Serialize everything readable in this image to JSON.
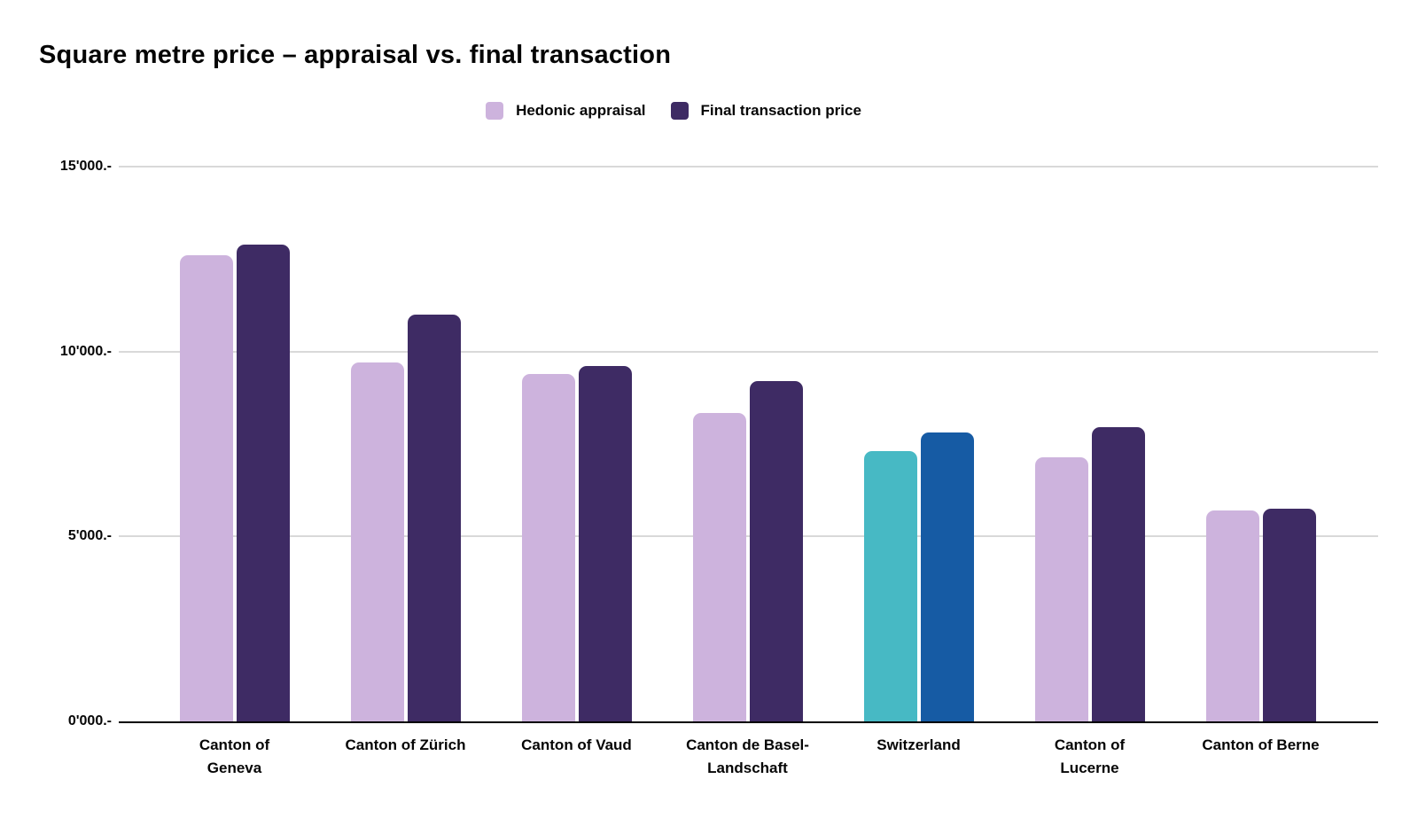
{
  "header": {
    "title": "Square metre price – appraisal vs. final transaction"
  },
  "legend": [
    {
      "label": "Hedonic appraisal",
      "color": "#cdb3dd"
    },
    {
      "label": "Final transaction price",
      "color": "#3e2b64"
    }
  ],
  "colors": {
    "hedonic": "#cdb3dd",
    "final": "#3e2b64",
    "highlight_hedonic": "#47b9c4",
    "highlight_final": "#165ba4",
    "gridline": "#d9d9d9",
    "axis": "#000000"
  },
  "chart_data": {
    "type": "bar",
    "title": "Square metre price – appraisal vs. final transaction",
    "categories": [
      {
        "label": "Canton of Geneva",
        "lines": [
          "Canton of",
          "Geneva"
        ]
      },
      {
        "label": "Canton of Zürich",
        "lines": [
          "Canton of Zürich"
        ]
      },
      {
        "label": "Canton of Vaud",
        "lines": [
          "Canton of Vaud"
        ]
      },
      {
        "label": "Canton de Basel-Landschaft",
        "lines": [
          "Canton de Basel-",
          "Landschaft"
        ]
      },
      {
        "label": "Switzerland",
        "lines": [
          "Switzerland"
        ]
      },
      {
        "label": "Canton of Lucerne",
        "lines": [
          "Canton of",
          "Lucerne"
        ]
      },
      {
        "label": "Canton of Berne",
        "lines": [
          "Canton of Berne"
        ]
      }
    ],
    "series": [
      {
        "name": "Hedonic appraisal",
        "color": "#cdb3dd",
        "values": [
          12600,
          9700,
          9400,
          8350,
          7300,
          7150,
          5700
        ]
      },
      {
        "name": "Final transaction price",
        "color": "#3e2b64",
        "values": [
          12900,
          11000,
          9600,
          9200,
          7800,
          7950,
          5750
        ]
      }
    ],
    "highlight": {
      "category": "Switzerland",
      "series_colors": [
        "#47b9c4",
        "#165ba4"
      ]
    },
    "xlabel": "",
    "ylabel": "",
    "ylim": [
      0,
      15000
    ],
    "yticks": [
      {
        "value": 0,
        "label": "0'000.-"
      },
      {
        "value": 5000,
        "label": "5'000.-"
      },
      {
        "value": 10000,
        "label": "10'000.-"
      },
      {
        "value": 15000,
        "label": "15'000.-"
      }
    ],
    "grid": true,
    "legend_position": "top-center"
  }
}
